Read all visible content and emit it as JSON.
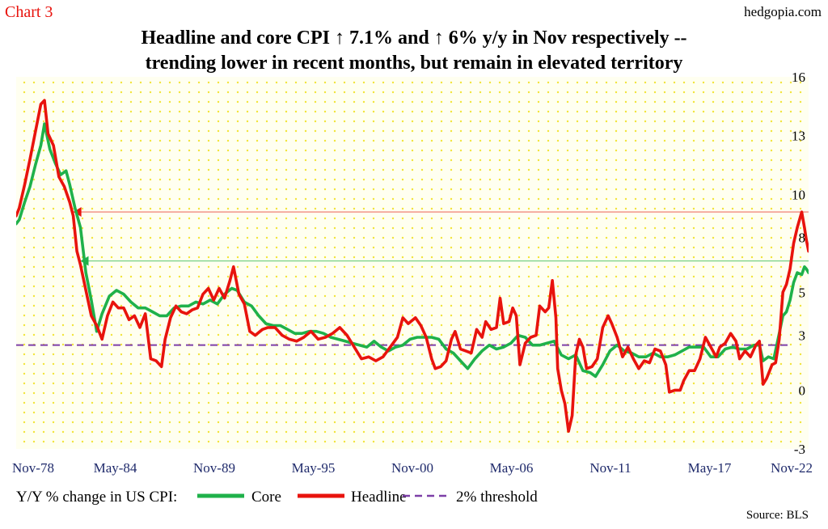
{
  "chart_label": "Chart 3",
  "site": "hedgopia.com",
  "source": "Source: BLS",
  "legend": {
    "prefix": "Y/Y % change in US CPI:",
    "core_label": "Core",
    "headline_label": "Headline",
    "threshold_label": "2% threshold"
  },
  "colors": {
    "core": "#1fb14a",
    "headline": "#e8130d",
    "threshold": "#7d3fa8",
    "plot_bg": "#fffff0",
    "dots": "#f2e43a",
    "ref_red": "#f08a80",
    "ref_green": "#7fd18c",
    "axis_text": "#1f2a6b"
  },
  "chart_data": {
    "type": "line",
    "title": "Headline and core CPI ↑ 7.1% and ↑ 6% y/y in Nov respectively --",
    "subtitle": "trending lower in recent months, but remain in elevated territory",
    "xlabel": "",
    "ylabel": "",
    "x_range": [
      1978.83,
      2022.83
    ],
    "ylim": [
      -3,
      16
    ],
    "x_ticks": [
      {
        "label": "Nov-78",
        "x": 1978.83
      },
      {
        "label": "May-84",
        "x": 1984.33
      },
      {
        "label": "Nov-89",
        "x": 1989.83
      },
      {
        "label": "May-95",
        "x": 1995.33
      },
      {
        "label": "Nov-00",
        "x": 2000.83
      },
      {
        "label": "May-06",
        "x": 2006.33
      },
      {
        "label": "Nov-11",
        "x": 2011.83
      },
      {
        "label": "May-17",
        "x": 2017.33
      },
      {
        "label": "Nov-22",
        "x": 2022.83
      }
    ],
    "y_ticks": [
      {
        "label": "16",
        "value": 16
      },
      {
        "label": "13",
        "value": 13
      },
      {
        "label": "10",
        "value": 10
      },
      {
        "label": "8",
        "value": 7.8
      },
      {
        "label": "5",
        "value": 5
      },
      {
        "label": "3",
        "value": 2.8
      },
      {
        "label": "0",
        "value": 0
      },
      {
        "label": "-3",
        "value": -3
      }
    ],
    "reference_lines": [
      {
        "series": "Headline",
        "value": 9.1,
        "x_start": 1982.0,
        "x_end": 2022.83
      },
      {
        "series": "Core",
        "value": 6.6,
        "x_start": 1982.4,
        "x_end": 2022.83
      }
    ],
    "threshold": {
      "name": "2% threshold",
      "value": 2.3
    },
    "legend_position": "bottom-left",
    "grid": false,
    "series": [
      {
        "name": "Headline",
        "points": [
          [
            1978.83,
            8.9
          ],
          [
            1979.0,
            9.3
          ],
          [
            1979.3,
            10.5
          ],
          [
            1979.6,
            11.8
          ],
          [
            1979.9,
            13.2
          ],
          [
            1980.2,
            14.6
          ],
          [
            1980.4,
            14.8
          ],
          [
            1980.6,
            13.1
          ],
          [
            1980.9,
            12.5
          ],
          [
            1981.2,
            10.9
          ],
          [
            1981.5,
            10.4
          ],
          [
            1981.8,
            9.6
          ],
          [
            1982.0,
            8.9
          ],
          [
            1982.2,
            7.1
          ],
          [
            1982.4,
            6.4
          ],
          [
            1982.7,
            5.1
          ],
          [
            1983.0,
            3.8
          ],
          [
            1983.3,
            3.3
          ],
          [
            1983.6,
            2.6
          ],
          [
            1983.9,
            3.8
          ],
          [
            1984.2,
            4.5
          ],
          [
            1984.5,
            4.2
          ],
          [
            1984.8,
            4.2
          ],
          [
            1985.1,
            3.6
          ],
          [
            1985.4,
            3.8
          ],
          [
            1985.7,
            3.2
          ],
          [
            1986.0,
            3.9
          ],
          [
            1986.3,
            1.6
          ],
          [
            1986.6,
            1.5
          ],
          [
            1986.9,
            1.2
          ],
          [
            1987.1,
            2.6
          ],
          [
            1987.4,
            3.7
          ],
          [
            1987.7,
            4.3
          ],
          [
            1988.0,
            4.0
          ],
          [
            1988.3,
            3.9
          ],
          [
            1988.6,
            4.1
          ],
          [
            1988.9,
            4.2
          ],
          [
            1989.2,
            4.9
          ],
          [
            1989.5,
            5.2
          ],
          [
            1989.8,
            4.6
          ],
          [
            1990.1,
            5.2
          ],
          [
            1990.4,
            4.7
          ],
          [
            1990.7,
            5.6
          ],
          [
            1990.9,
            6.3
          ],
          [
            1991.2,
            4.9
          ],
          [
            1991.5,
            4.4
          ],
          [
            1991.8,
            3.0
          ],
          [
            1992.1,
            2.8
          ],
          [
            1992.5,
            3.1
          ],
          [
            1992.8,
            3.2
          ],
          [
            1993.2,
            3.2
          ],
          [
            1993.6,
            2.8
          ],
          [
            1994.0,
            2.6
          ],
          [
            1994.4,
            2.5
          ],
          [
            1994.8,
            2.7
          ],
          [
            1995.2,
            3.0
          ],
          [
            1995.6,
            2.6
          ],
          [
            1996.0,
            2.7
          ],
          [
            1996.4,
            2.9
          ],
          [
            1996.8,
            3.2
          ],
          [
            1997.2,
            2.8
          ],
          [
            1997.6,
            2.2
          ],
          [
            1998.0,
            1.6
          ],
          [
            1998.4,
            1.7
          ],
          [
            1998.8,
            1.5
          ],
          [
            1999.2,
            1.7
          ],
          [
            1999.6,
            2.2
          ],
          [
            2000.0,
            2.7
          ],
          [
            2000.3,
            3.7
          ],
          [
            2000.6,
            3.4
          ],
          [
            2001.0,
            3.7
          ],
          [
            2001.3,
            3.3
          ],
          [
            2001.6,
            2.7
          ],
          [
            2001.9,
            1.6
          ],
          [
            2002.1,
            1.1
          ],
          [
            2002.4,
            1.2
          ],
          [
            2002.7,
            1.5
          ],
          [
            2003.0,
            2.6
          ],
          [
            2003.2,
            3.0
          ],
          [
            2003.5,
            2.1
          ],
          [
            2003.8,
            2.0
          ],
          [
            2004.1,
            1.9
          ],
          [
            2004.4,
            3.1
          ],
          [
            2004.7,
            2.7
          ],
          [
            2004.9,
            3.5
          ],
          [
            2005.2,
            3.1
          ],
          [
            2005.5,
            3.2
          ],
          [
            2005.7,
            4.7
          ],
          [
            2005.9,
            3.4
          ],
          [
            2006.2,
            3.5
          ],
          [
            2006.4,
            4.2
          ],
          [
            2006.6,
            3.8
          ],
          [
            2006.8,
            1.3
          ],
          [
            2007.1,
            2.4
          ],
          [
            2007.4,
            2.7
          ],
          [
            2007.7,
            2.8
          ],
          [
            2007.9,
            4.3
          ],
          [
            2008.2,
            4.0
          ],
          [
            2008.4,
            4.2
          ],
          [
            2008.6,
            5.6
          ],
          [
            2008.8,
            3.7
          ],
          [
            2008.9,
            1.1
          ],
          [
            2009.1,
            0.0
          ],
          [
            2009.3,
            -0.7
          ],
          [
            2009.5,
            -2.1
          ],
          [
            2009.7,
            -1.3
          ],
          [
            2009.9,
            1.8
          ],
          [
            2010.1,
            2.6
          ],
          [
            2010.3,
            2.2
          ],
          [
            2010.5,
            1.1
          ],
          [
            2010.8,
            1.2
          ],
          [
            2011.1,
            1.6
          ],
          [
            2011.4,
            3.2
          ],
          [
            2011.7,
            3.8
          ],
          [
            2011.9,
            3.4
          ],
          [
            2012.2,
            2.7
          ],
          [
            2012.5,
            1.7
          ],
          [
            2012.8,
            2.2
          ],
          [
            2013.1,
            1.6
          ],
          [
            2013.4,
            1.1
          ],
          [
            2013.7,
            1.5
          ],
          [
            2014.0,
            1.4
          ],
          [
            2014.3,
            2.1
          ],
          [
            2014.6,
            2.0
          ],
          [
            2014.9,
            1.3
          ],
          [
            2015.1,
            -0.1
          ],
          [
            2015.4,
            0.0
          ],
          [
            2015.7,
            0.0
          ],
          [
            2015.9,
            0.5
          ],
          [
            2016.2,
            1.0
          ],
          [
            2016.5,
            1.0
          ],
          [
            2016.8,
            1.6
          ],
          [
            2017.1,
            2.7
          ],
          [
            2017.4,
            2.2
          ],
          [
            2017.7,
            1.7
          ],
          [
            2017.9,
            2.2
          ],
          [
            2018.2,
            2.4
          ],
          [
            2018.5,
            2.9
          ],
          [
            2018.8,
            2.5
          ],
          [
            2019.0,
            1.6
          ],
          [
            2019.3,
            2.0
          ],
          [
            2019.6,
            1.7
          ],
          [
            2019.9,
            2.3
          ],
          [
            2020.1,
            2.5
          ],
          [
            2020.3,
            0.3
          ],
          [
            2020.5,
            0.6
          ],
          [
            2020.8,
            1.3
          ],
          [
            2021.0,
            1.4
          ],
          [
            2021.2,
            2.6
          ],
          [
            2021.4,
            5.0
          ],
          [
            2021.6,
            5.4
          ],
          [
            2021.8,
            6.2
          ],
          [
            2022.0,
            7.5
          ],
          [
            2022.2,
            8.3
          ],
          [
            2022.45,
            9.1
          ],
          [
            2022.6,
            8.3
          ],
          [
            2022.7,
            7.7
          ],
          [
            2022.83,
            7.1
          ]
        ]
      },
      {
        "name": "Core",
        "points": [
          [
            1978.83,
            8.5
          ],
          [
            1979.0,
            8.7
          ],
          [
            1979.3,
            9.6
          ],
          [
            1979.6,
            10.4
          ],
          [
            1979.9,
            11.5
          ],
          [
            1980.2,
            12.5
          ],
          [
            1980.4,
            13.6
          ],
          [
            1980.7,
            12.3
          ],
          [
            1981.0,
            11.6
          ],
          [
            1981.3,
            11.0
          ],
          [
            1981.6,
            11.2
          ],
          [
            1981.8,
            10.5
          ],
          [
            1982.1,
            9.3
          ],
          [
            1982.4,
            8.3
          ],
          [
            1982.7,
            6.0
          ],
          [
            1983.0,
            4.6
          ],
          [
            1983.3,
            3.0
          ],
          [
            1983.6,
            3.9
          ],
          [
            1984.0,
            4.8
          ],
          [
            1984.4,
            5.1
          ],
          [
            1984.8,
            4.9
          ],
          [
            1985.2,
            4.5
          ],
          [
            1985.6,
            4.2
          ],
          [
            1986.0,
            4.2
          ],
          [
            1986.4,
            4.0
          ],
          [
            1986.8,
            3.8
          ],
          [
            1987.2,
            3.8
          ],
          [
            1987.6,
            4.2
          ],
          [
            1988.0,
            4.3
          ],
          [
            1988.4,
            4.3
          ],
          [
            1988.8,
            4.5
          ],
          [
            1989.2,
            4.4
          ],
          [
            1989.6,
            4.6
          ],
          [
            1990.0,
            4.4
          ],
          [
            1990.4,
            4.9
          ],
          [
            1990.8,
            5.2
          ],
          [
            1991.1,
            5.1
          ],
          [
            1991.5,
            4.5
          ],
          [
            1991.9,
            4.3
          ],
          [
            1992.3,
            3.8
          ],
          [
            1992.7,
            3.4
          ],
          [
            1993.1,
            3.3
          ],
          [
            1993.5,
            3.3
          ],
          [
            1993.9,
            3.1
          ],
          [
            1994.3,
            2.9
          ],
          [
            1994.7,
            2.9
          ],
          [
            1995.1,
            3.0
          ],
          [
            1995.5,
            3.0
          ],
          [
            1995.9,
            2.9
          ],
          [
            1996.3,
            2.7
          ],
          [
            1996.7,
            2.6
          ],
          [
            1997.1,
            2.5
          ],
          [
            1997.5,
            2.4
          ],
          [
            1997.9,
            2.3
          ],
          [
            1998.3,
            2.2
          ],
          [
            1998.7,
            2.5
          ],
          [
            1999.1,
            2.2
          ],
          [
            1999.5,
            2.0
          ],
          [
            1999.9,
            2.2
          ],
          [
            2000.3,
            2.3
          ],
          [
            2000.7,
            2.6
          ],
          [
            2001.1,
            2.7
          ],
          [
            2001.5,
            2.7
          ],
          [
            2001.9,
            2.7
          ],
          [
            2002.3,
            2.6
          ],
          [
            2002.7,
            2.1
          ],
          [
            2003.1,
            1.9
          ],
          [
            2003.5,
            1.5
          ],
          [
            2003.9,
            1.1
          ],
          [
            2004.3,
            1.6
          ],
          [
            2004.7,
            2.0
          ],
          [
            2005.1,
            2.3
          ],
          [
            2005.5,
            2.1
          ],
          [
            2005.9,
            2.2
          ],
          [
            2006.3,
            2.4
          ],
          [
            2006.7,
            2.8
          ],
          [
            2007.1,
            2.7
          ],
          [
            2007.5,
            2.3
          ],
          [
            2007.9,
            2.3
          ],
          [
            2008.3,
            2.4
          ],
          [
            2008.7,
            2.5
          ],
          [
            2009.1,
            1.8
          ],
          [
            2009.5,
            1.6
          ],
          [
            2009.9,
            1.8
          ],
          [
            2010.3,
            1.0
          ],
          [
            2010.7,
            0.9
          ],
          [
            2011.0,
            0.7
          ],
          [
            2011.4,
            1.3
          ],
          [
            2011.8,
            2.0
          ],
          [
            2012.2,
            2.3
          ],
          [
            2012.6,
            2.0
          ],
          [
            2013.0,
            1.9
          ],
          [
            2013.4,
            1.7
          ],
          [
            2013.8,
            1.7
          ],
          [
            2014.2,
            1.9
          ],
          [
            2014.6,
            1.7
          ],
          [
            2015.0,
            1.7
          ],
          [
            2015.4,
            1.8
          ],
          [
            2015.8,
            2.0
          ],
          [
            2016.2,
            2.2
          ],
          [
            2016.6,
            2.2
          ],
          [
            2017.0,
            2.2
          ],
          [
            2017.4,
            1.7
          ],
          [
            2017.8,
            1.7
          ],
          [
            2018.2,
            2.1
          ],
          [
            2018.6,
            2.2
          ],
          [
            2019.0,
            2.1
          ],
          [
            2019.4,
            2.1
          ],
          [
            2019.8,
            2.3
          ],
          [
            2020.1,
            2.3
          ],
          [
            2020.3,
            1.5
          ],
          [
            2020.6,
            1.7
          ],
          [
            2020.9,
            1.6
          ],
          [
            2021.2,
            2.9
          ],
          [
            2021.4,
            3.8
          ],
          [
            2021.6,
            4.0
          ],
          [
            2021.8,
            4.6
          ],
          [
            2022.0,
            5.5
          ],
          [
            2022.2,
            6.0
          ],
          [
            2022.45,
            5.9
          ],
          [
            2022.6,
            6.3
          ],
          [
            2022.7,
            6.2
          ],
          [
            2022.83,
            6.0
          ]
        ]
      }
    ]
  }
}
